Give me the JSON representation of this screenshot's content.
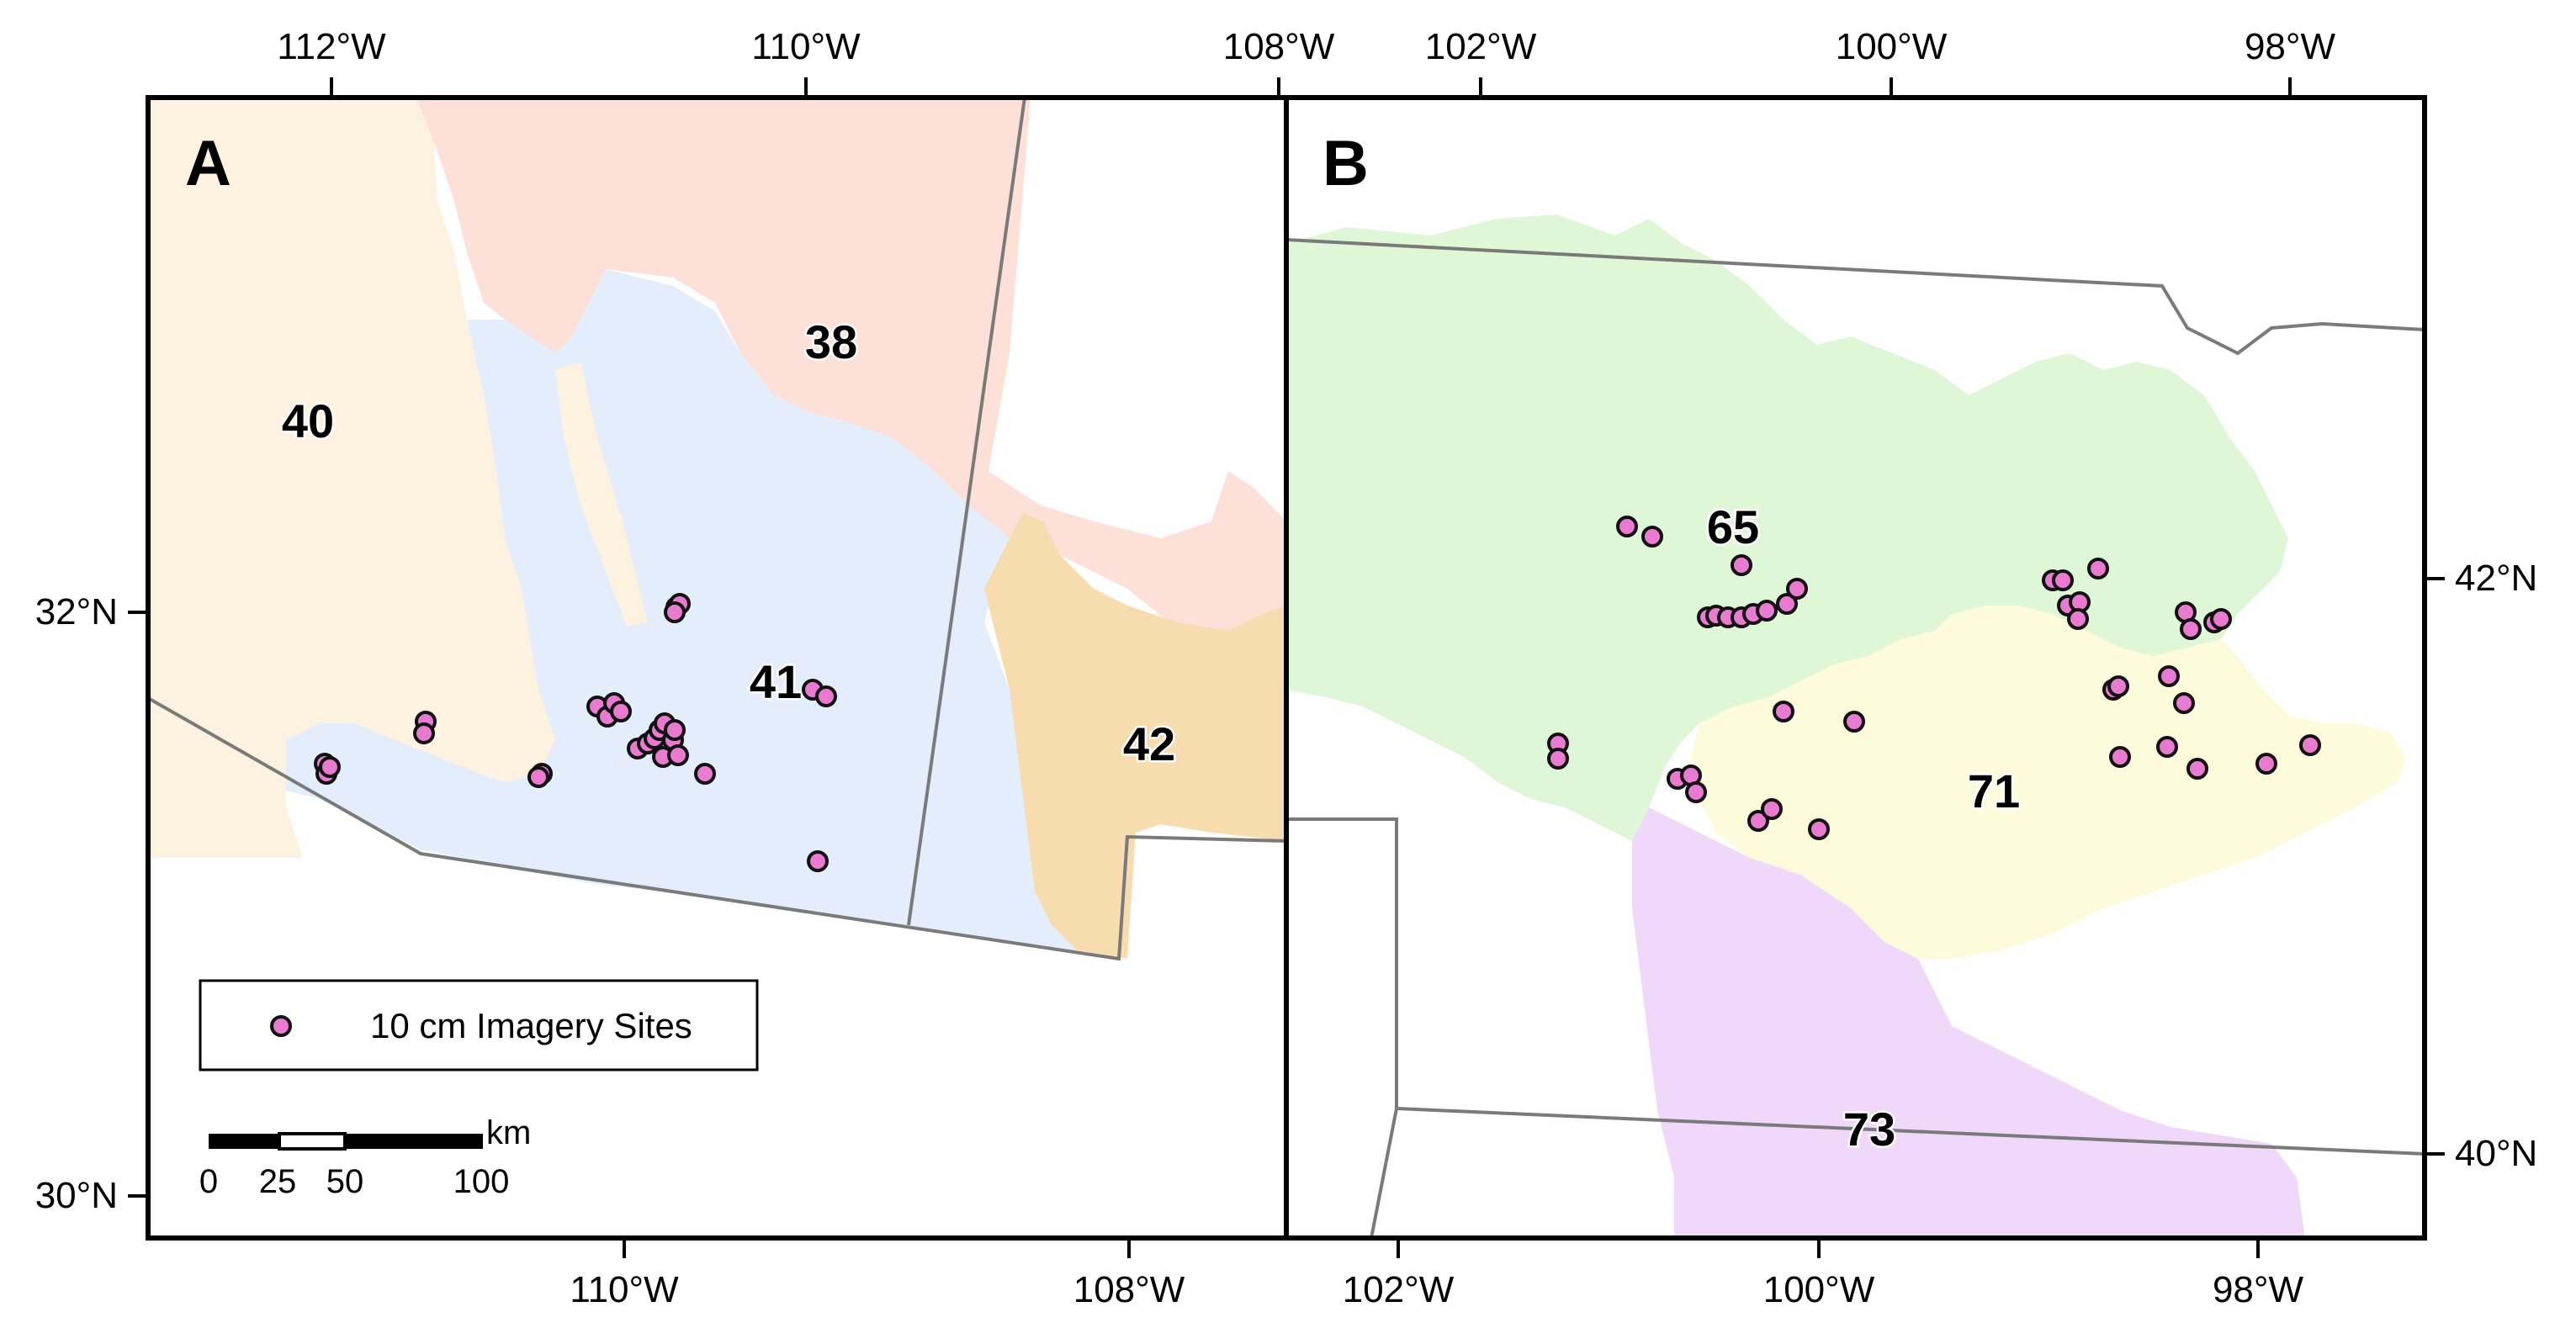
{
  "colors": {
    "site_fill": "#e87ad0",
    "site_stroke": "#111111",
    "eco_38": "#fde0d8",
    "eco_40": "#fdf2df",
    "eco_41": "#e4edfb",
    "eco_42": "#f6dcae",
    "eco_65": "#dff7d7",
    "eco_71": "#fefbdc",
    "eco_73": "#efd8f9",
    "boundary": "#7a7a7a"
  },
  "panel_a": {
    "letter": "A",
    "top_ticks": [
      "112°W",
      "110°W",
      "108°W"
    ],
    "bottom_ticks": [
      "110°W",
      "108°W"
    ],
    "left_ticks": [
      "32°N",
      "30°N"
    ],
    "labels": {
      "eco_38": "38",
      "eco_40": "40",
      "eco_41": "41",
      "eco_42": "42"
    }
  },
  "panel_b": {
    "letter": "B",
    "top_ticks": [
      "102°W",
      "100°W",
      "98°W"
    ],
    "bottom_ticks": [
      "102°W",
      "100°W",
      "98°W"
    ],
    "right_ticks": [
      "42°N",
      "40°N"
    ],
    "labels": {
      "eco_65": "65",
      "eco_71": "71",
      "eco_73": "73"
    }
  },
  "legend": {
    "label": "10 cm Imagery Sites",
    "symbol": "pink-circle-marker"
  },
  "scalebar": {
    "unit": "km",
    "ticks": [
      "0",
      "25",
      "50",
      "100"
    ]
  }
}
